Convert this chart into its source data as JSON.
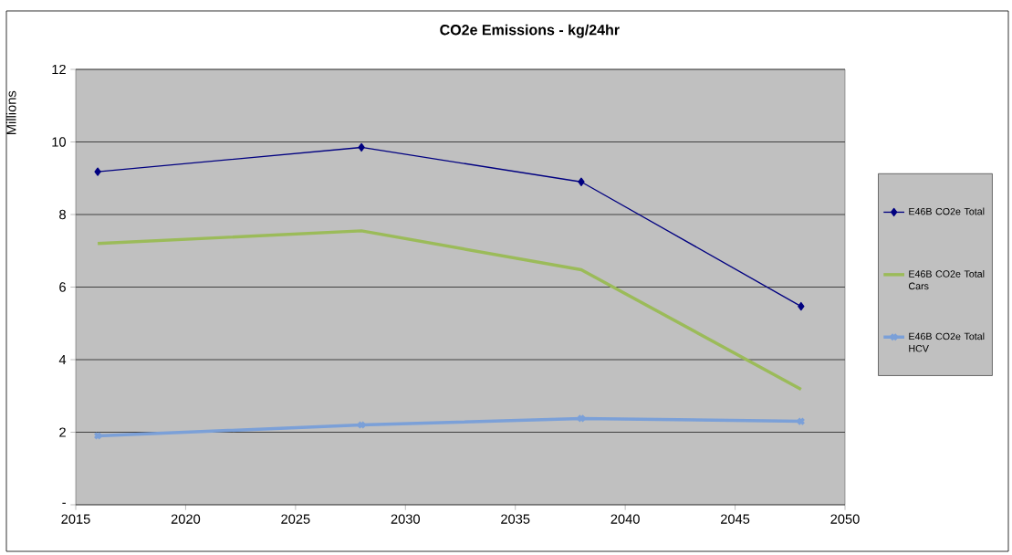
{
  "chart_data": {
    "type": "line",
    "title": "CO2e Emissions - kg/24hr",
    "ylabel": "Millions",
    "x": [
      2016,
      2028,
      2038,
      2048
    ],
    "series": [
      {
        "name": "E46B  CO2e Total",
        "color": "#000080",
        "marker": "diamond",
        "values": [
          9.18,
          9.85,
          8.9,
          5.47
        ]
      },
      {
        "name": "E46B  CO2e Total Cars",
        "color": "#9bbb59",
        "marker": "none",
        "values": [
          7.2,
          7.55,
          6.48,
          3.18
        ]
      },
      {
        "name": "E46B  CO2e Total HCV",
        "color": "#7ba0d8",
        "marker": "cross",
        "values": [
          1.9,
          2.2,
          2.38,
          2.3
        ]
      }
    ],
    "xlim": [
      2015,
      2050
    ],
    "xticks": [
      2015,
      2020,
      2025,
      2030,
      2035,
      2040,
      2045,
      2050
    ],
    "ylim": [
      0,
      12
    ],
    "yticks": [
      {
        "value": 0,
        "label": "-"
      },
      2,
      4,
      6,
      8,
      10,
      12
    ],
    "grid": "y",
    "legend": "right",
    "line_style": "solid"
  }
}
